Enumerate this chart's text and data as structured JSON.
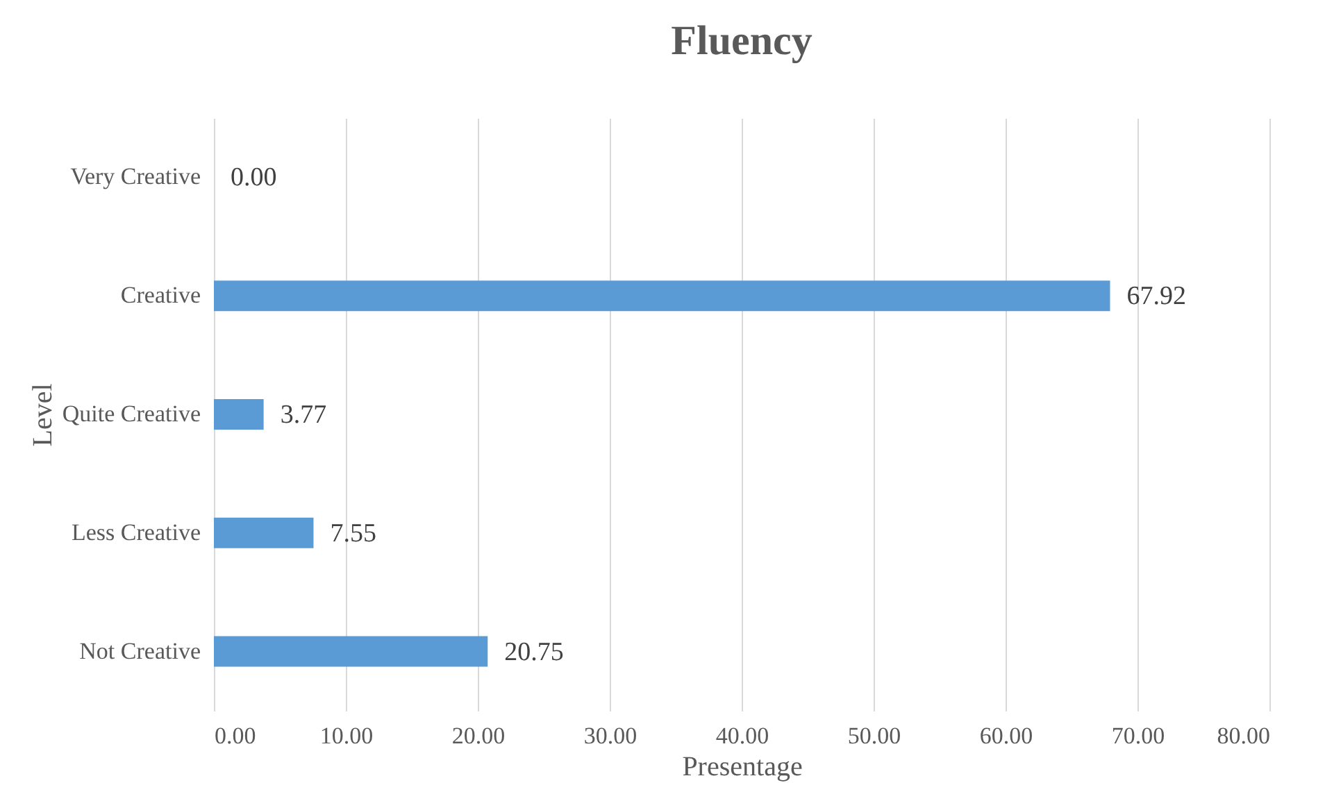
{
  "chart_data": {
    "type": "bar",
    "orientation": "horizontal",
    "title": "Fluency",
    "xlabel": "Presentage",
    "ylabel": "Level",
    "categories": [
      "Very Creative",
      "Creative",
      "Quite Creative",
      "Less Creative",
      "Not Creative"
    ],
    "values": [
      0,
      67.92,
      3.77,
      7.55,
      20.75
    ],
    "value_labels": [
      "0.00",
      "67.92",
      "3.77",
      "7.55",
      "20.75"
    ],
    "color": "#5b9bd5",
    "xlim": [
      0,
      80
    ],
    "xticks": [
      {
        "value": 0,
        "label": "0.00"
      },
      {
        "value": 10,
        "label": "10.00"
      },
      {
        "value": 20,
        "label": "20.00"
      },
      {
        "value": 30,
        "label": "30.00"
      },
      {
        "value": 40,
        "label": "40.00"
      },
      {
        "value": 50,
        "label": "50.00"
      },
      {
        "value": 60,
        "label": "60.00"
      },
      {
        "value": 70,
        "label": "70.00"
      },
      {
        "value": 80,
        "label": "80.00"
      }
    ],
    "grid": "x"
  }
}
